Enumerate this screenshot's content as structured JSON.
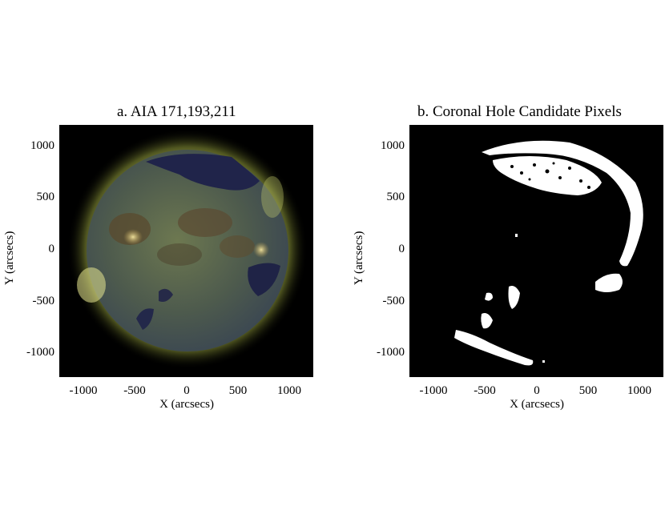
{
  "panel_a": {
    "title": "a. AIA 171,193,211",
    "xlabel": "X (arcsecs)",
    "ylabel": "Y (arcsecs)",
    "xticks": [
      "-1000",
      "-500",
      "0",
      "500",
      "1000"
    ],
    "yticks": [
      "1000",
      "500",
      "0",
      "-500",
      "-1000"
    ]
  },
  "panel_b": {
    "title": "b. Coronal Hole Candidate Pixels",
    "xlabel": "X (arcsecs)",
    "ylabel": "Y (arcsecs)",
    "xticks": [
      "-1000",
      "-500",
      "0",
      "500",
      "1000"
    ],
    "yticks": [
      "1000",
      "500",
      "0",
      "-500",
      "-1000"
    ]
  },
  "colors": {
    "background": "#000000",
    "candidate_pixels": "#ffffff",
    "coronal_hole": "#1e2244",
    "corona_glow": "#b8c25a"
  }
}
